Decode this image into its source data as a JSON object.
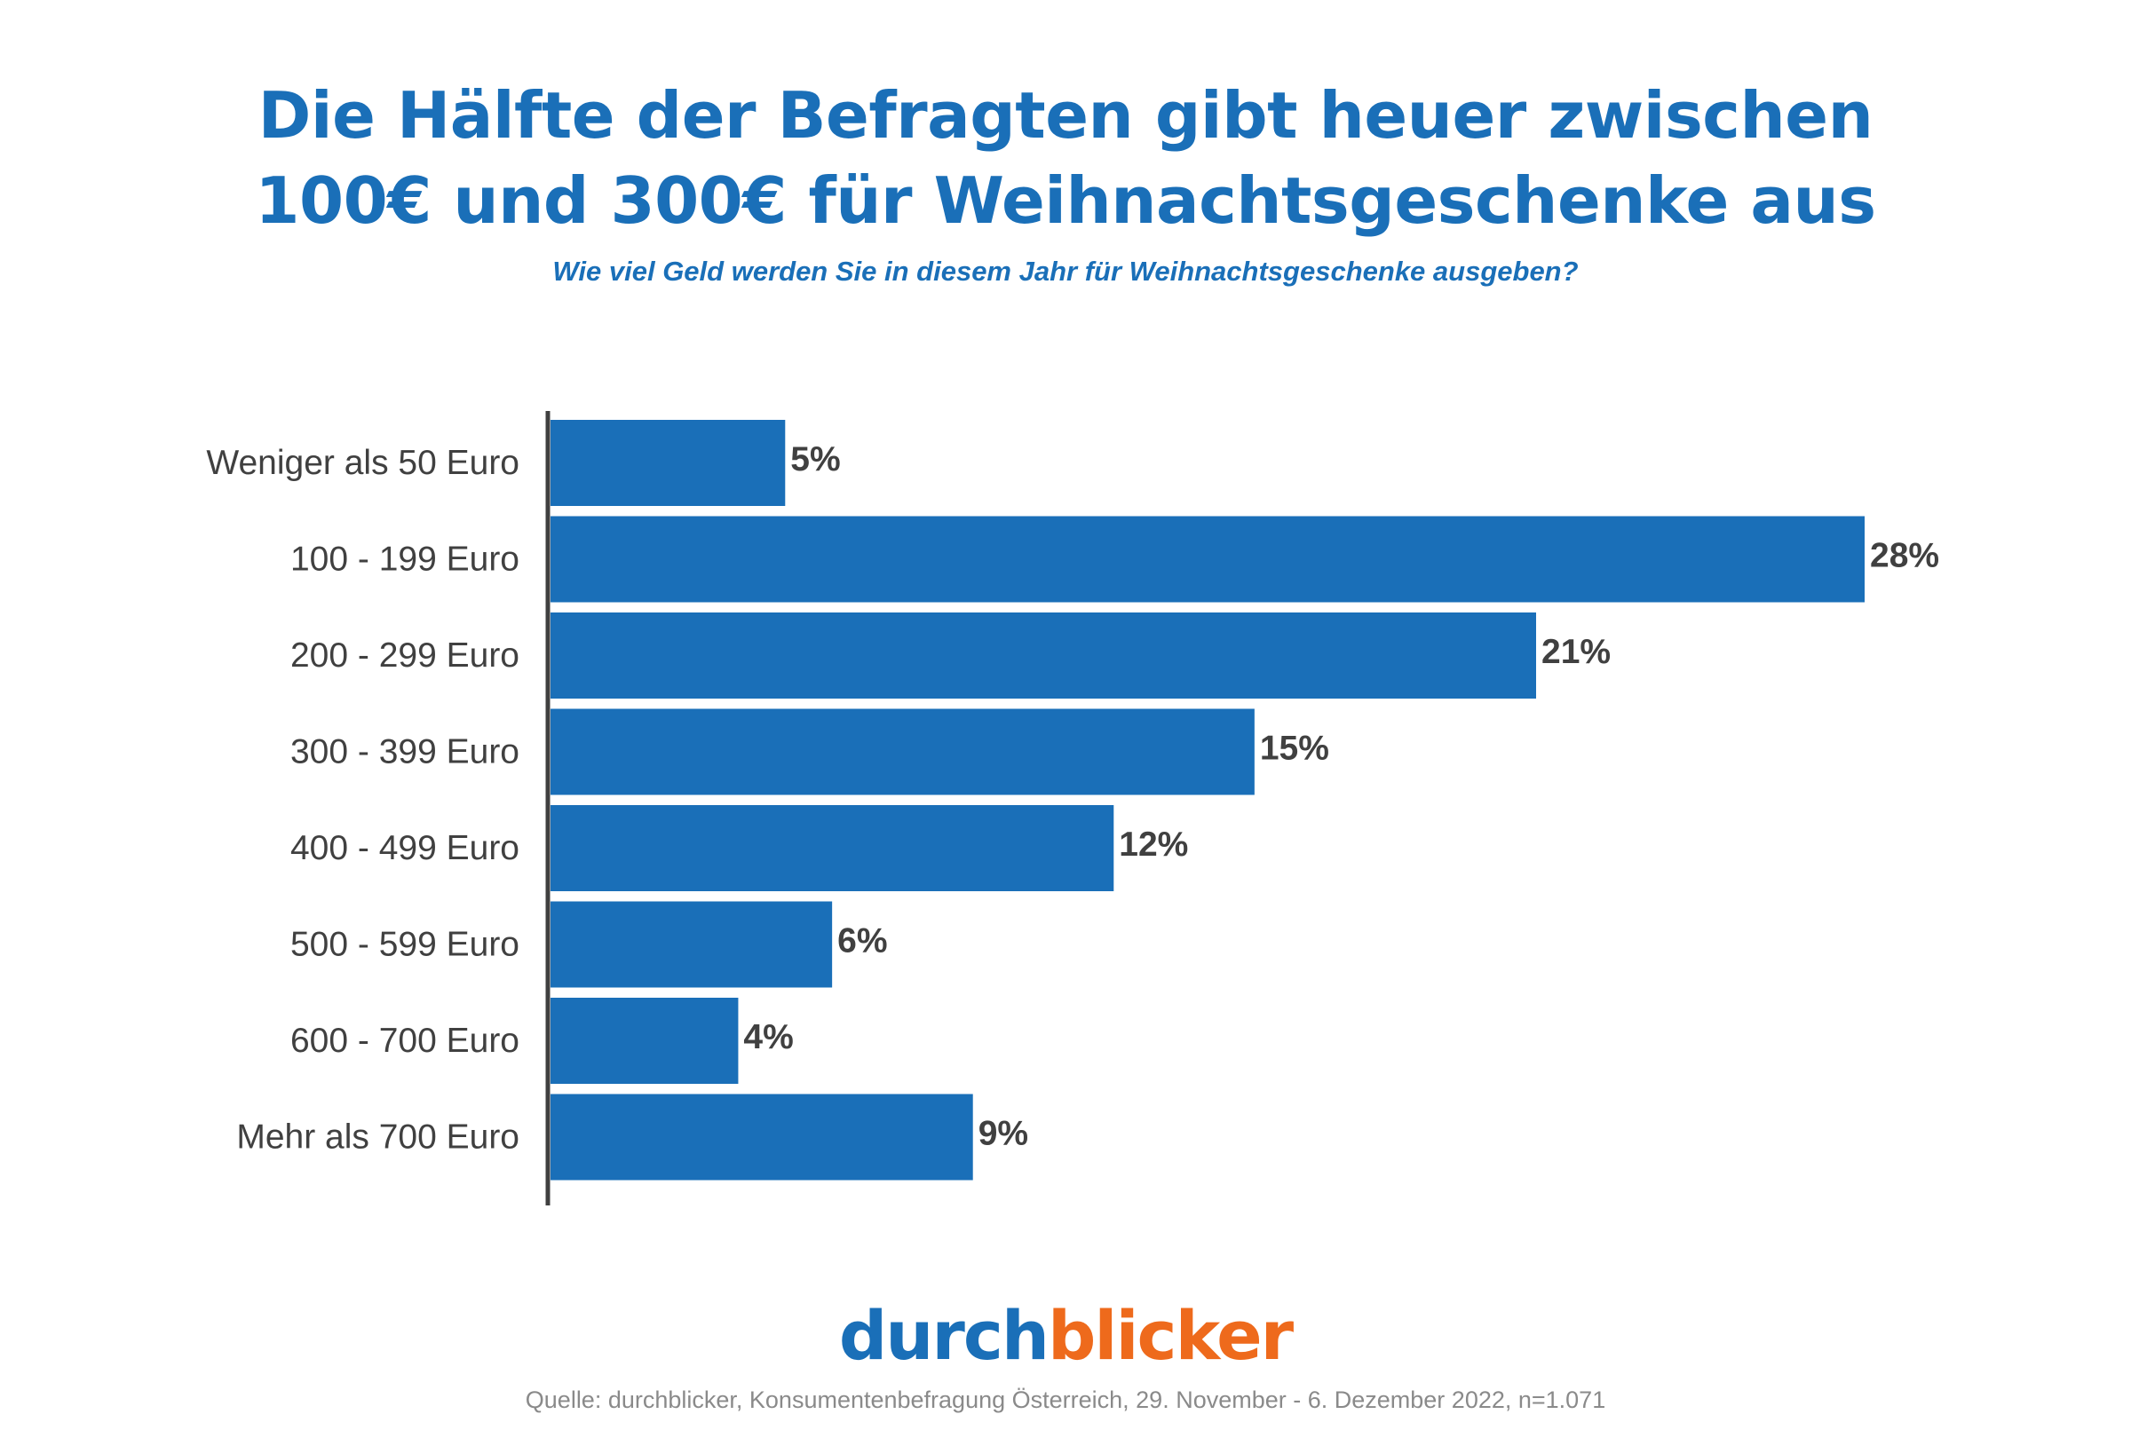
{
  "title": {
    "line1": "Die Hälfte der Befragten gibt heuer zwischen",
    "line2": "100€ und 300€ für Weihnachtsgeschenke aus"
  },
  "subtitle": "Wie viel Geld werden Sie in diesem Jahr für Weihnachtsgeschenke ausgeben?",
  "chart_data": {
    "type": "bar",
    "orientation": "horizontal",
    "categories": [
      "Weniger als 50 Euro",
      "100 - 199 Euro",
      "200 - 299 Euro",
      "300 - 399 Euro",
      "400 - 499 Euro",
      "500 - 599 Euro",
      "600 - 700 Euro",
      "Mehr als 700 Euro"
    ],
    "values": [
      5,
      28,
      21,
      15,
      12,
      6,
      4,
      9
    ],
    "value_labels": [
      "5%",
      "28%",
      "21%",
      "15%",
      "12%",
      "6%",
      "4%",
      "9%"
    ],
    "unit": "%",
    "xlim": [
      0,
      28
    ],
    "grid": false,
    "legend": "none",
    "bar_color": "#1a6fb8"
  },
  "logo": {
    "part1": "durch",
    "part2": "blicker",
    "colors": {
      "part1": "#1a6fb8",
      "part2": "#ee6a1c"
    }
  },
  "source": "Quelle: durchblicker, Konsumentenbefragung Österreich,  29. November - 6. Dezember 2022, n=1.071"
}
